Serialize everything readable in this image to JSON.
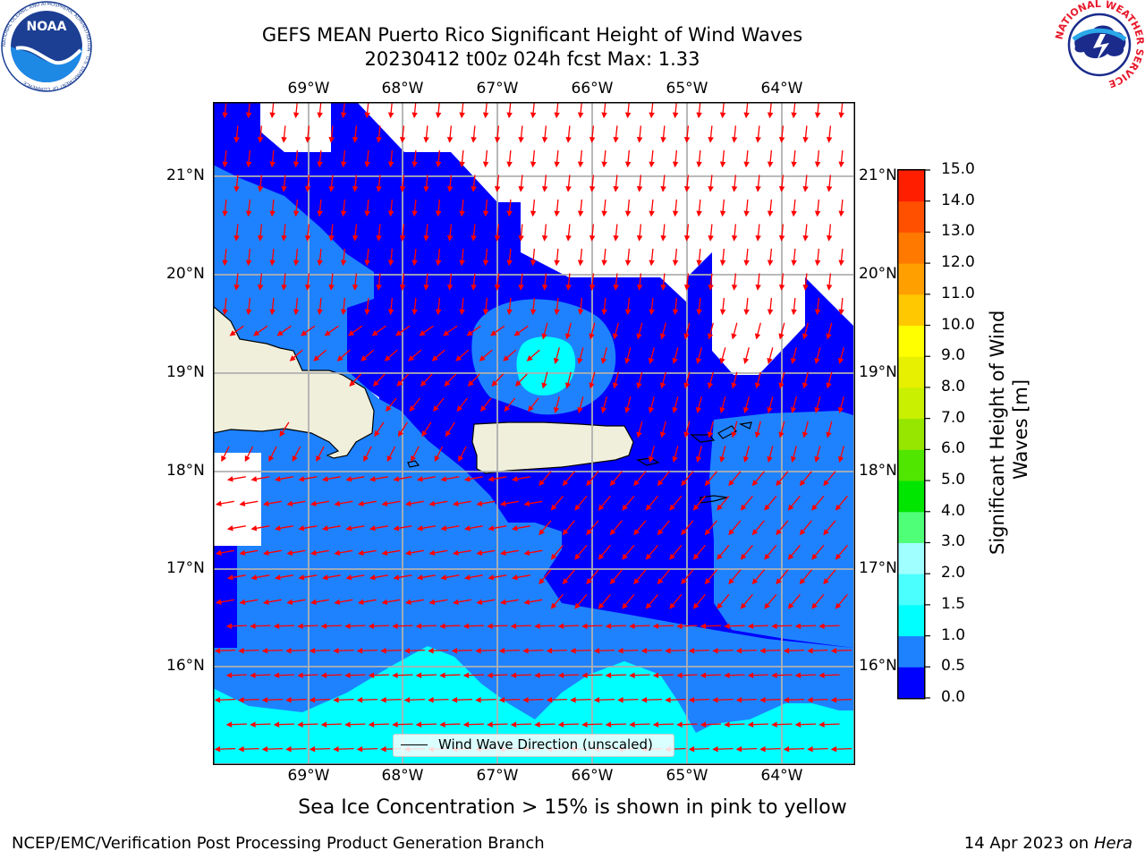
{
  "header": {
    "title_line1": "GEFS MEAN Puerto Rico Significant Height of Wind Waves",
    "title_line2": "20230412 t00z 024h fcst   Max: 1.33"
  },
  "logos": {
    "left": "noaa-logo",
    "left_text": "NOAA",
    "left_ring_text": "NATIONAL OCEANIC AND ATMOSPHERIC ADMINISTRATION · U.S. DEPARTMENT OF COMMERCE",
    "right": "nws-logo",
    "right_ring_text": "NATIONAL WEATHER SERVICE"
  },
  "map": {
    "lon_labels": [
      "69°W",
      "68°W",
      "67°W",
      "66°W",
      "65°W",
      "64°W"
    ],
    "lat_labels": [
      "21°N",
      "20°N",
      "19°N",
      "18°N",
      "17°N",
      "16°N"
    ],
    "legend_label": "Wind Wave Direction (unscaled)",
    "colors": {
      "band_0_0.5": "#0000ff",
      "band_0.5_1.0": "#1e82ff",
      "band_1.0_1.5": "#00ffff",
      "land": "#efefdc",
      "arrows": "#ff0000",
      "grid": "#b0b0b0"
    }
  },
  "colorbar": {
    "title": "Significant Height of Wind Waves [m]",
    "tick_labels": [
      "0.0",
      "0.5",
      "1.0",
      "1.5",
      "2.0",
      "3.0",
      "4.0",
      "5.0",
      "6.0",
      "7.0",
      "8.0",
      "9.0",
      "10.0",
      "11.0",
      "12.0",
      "13.0",
      "14.0",
      "15.0"
    ],
    "colors": [
      "#0000ff",
      "#1e82ff",
      "#00ffff",
      "#4bffff",
      "#a0ffff",
      "#50ff78",
      "#00e600",
      "#50e600",
      "#96e600",
      "#c8f000",
      "#e6f000",
      "#ffff00",
      "#ffc800",
      "#ffa000",
      "#ff7800",
      "#ff5000",
      "#ff1e00"
    ]
  },
  "footer": {
    "note": "Sea Ice Concentration > 15% is shown in pink to yellow",
    "left": "NCEP/EMC/Verification Post Processing Product Generation Branch",
    "right_prefix": "14 Apr 2023 on ",
    "right_host": "Hera"
  }
}
